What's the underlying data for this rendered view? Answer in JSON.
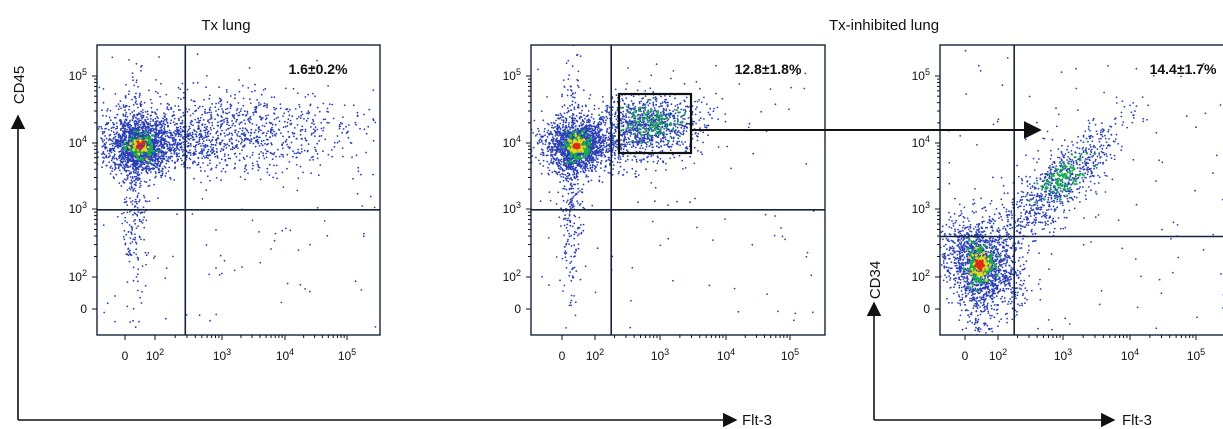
{
  "figure_titles": {
    "left": "Tx lung",
    "right": "Tx-inhibited lung"
  },
  "axis_names": {
    "y_left": "CD45",
    "y_right": "CD34",
    "x_left": "Flt-3",
    "x_right": "Flt-3"
  },
  "palette": {
    "dots": "#2a3fb5",
    "hot_green": "#19b04a",
    "hot_yellow": "#e8d51c",
    "hot_red": "#e02a1a",
    "lines": "#15243d"
  },
  "chart_data": [
    {
      "type": "scatter",
      "id": "panel1",
      "title": "Tx lung",
      "xlabel": "Flt-3",
      "ylabel": "CD45",
      "scale": "log (biexponential)",
      "x_tick_labels": [
        "0",
        "10^2",
        "10^3",
        "10^4",
        "10^5"
      ],
      "y_tick_labels": [
        "0",
        "10^2",
        "10^3",
        "10^4",
        "10^5"
      ],
      "quadrant_gate": {
        "x": 300,
        "y": 1000
      },
      "annotations": [
        "1.6±0.2%"
      ],
      "populations": [
        {
          "center": [
            50,
            9000
          ],
          "note": "main dense population"
        },
        {
          "center": [
            1000,
            15000
          ],
          "note": "Flt-3+ CD45+ tail"
        }
      ]
    },
    {
      "type": "scatter",
      "id": "panel2",
      "title": "Tx-inhibited lung",
      "xlabel": "Flt-3",
      "ylabel": "CD45",
      "scale": "log (biexponential)",
      "x_tick_labels": [
        "0",
        "10^2",
        "10^3",
        "10^4",
        "10^5"
      ],
      "y_tick_labels": [
        "0",
        "10^2",
        "10^3",
        "10^4",
        "10^5"
      ],
      "quadrant_gate": {
        "x": 200,
        "y": 1000
      },
      "sort_gate_box": {
        "x": [
          200,
          2500
        ],
        "y": [
          7000,
          40000
        ]
      },
      "annotations": [
        "12.8±1.8%"
      ],
      "populations": [
        {
          "center": [
            50,
            9000
          ],
          "note": "main dense population"
        },
        {
          "center": [
            800,
            20000
          ],
          "note": "Flt-3+ CD45+ gated cluster"
        }
      ]
    },
    {
      "type": "scatter",
      "id": "panel3",
      "xlabel": "Flt-3",
      "ylabel": "CD34",
      "scale": "log (biexponential)",
      "x_tick_labels": [
        "0",
        "10^2",
        "10^3",
        "10^4",
        "10^5"
      ],
      "y_tick_labels": [
        "0",
        "10^2",
        "10^3",
        "10^4",
        "10^5"
      ],
      "quadrant_gate": {
        "x": 200,
        "y": 400
      },
      "annotations": [
        "14.4±1.7%"
      ],
      "populations": [
        {
          "center": [
            50,
            150
          ],
          "note": "main dense population"
        },
        {
          "center": [
            800,
            2000
          ],
          "note": "Flt-3+ CD34+ diagonal cluster"
        }
      ]
    }
  ]
}
